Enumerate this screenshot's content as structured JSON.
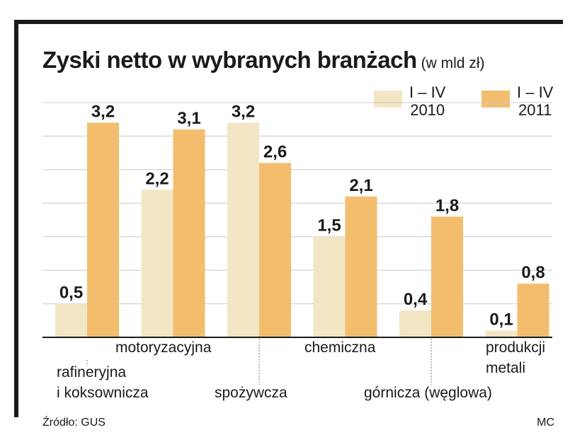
{
  "colors": {
    "y2010": "#f2e6c4",
    "y2011": "#f2be6e",
    "grid": "#c8c8c8",
    "axis": "#1a1a1a",
    "text": "#1a1a1a"
  },
  "title": "Zyski netto w wybranych branżach",
  "unit": "(w mld zł)",
  "legend": [
    {
      "line1": "I – IV",
      "line2": "2010"
    },
    {
      "line1": "I – IV",
      "line2": "2011"
    }
  ],
  "chart_data": {
    "type": "bar",
    "title": "Zyski netto w wybranych branżach",
    "ylim": [
      0,
      3.5
    ],
    "grid": true,
    "legend_position": "top-right",
    "categories": [
      [
        "rafineryjna",
        "i koksownicza"
      ],
      [
        "motoryzacyjna"
      ],
      [
        "spożywcza"
      ],
      [
        "chemiczna"
      ],
      [
        "górnicza (węglowa)"
      ],
      [
        "produkcji",
        "metali"
      ]
    ],
    "series": [
      {
        "name": "I – IV 2010",
        "values": [
          0.5,
          2.2,
          3.2,
          1.5,
          0.4,
          0.1
        ],
        "labels": [
          "0,5",
          "2,2",
          "3,2",
          "1,5",
          "0,4",
          "0,1"
        ]
      },
      {
        "name": "I – IV 2011",
        "values": [
          3.2,
          3.1,
          2.6,
          2.1,
          1.8,
          0.8
        ],
        "labels": [
          "3,2",
          "3,1",
          "2,6",
          "2,1",
          "1,8",
          "0,8"
        ]
      }
    ]
  },
  "footer": {
    "source": "Źródło: GUS",
    "author": "MC"
  }
}
